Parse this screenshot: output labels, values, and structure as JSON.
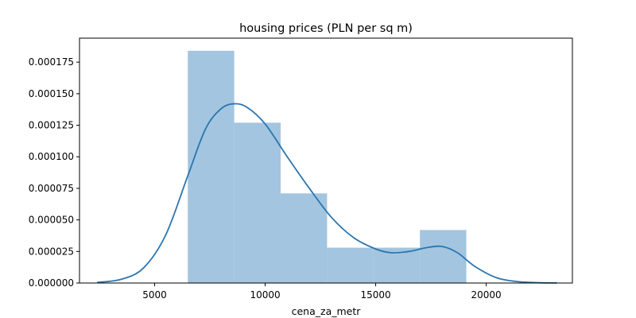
{
  "chart_data": {
    "type": "bar",
    "title": "housing prices (PLN per sq m)",
    "xlabel": "cena_za_metr",
    "ylabel": "",
    "xlim": [
      1600,
      23900
    ],
    "ylim": [
      0,
      0.000194
    ],
    "xticks": [
      5000,
      10000,
      15000,
      20000
    ],
    "xtick_labels": [
      "5000",
      "10000",
      "15000",
      "20000"
    ],
    "yticks": [
      0,
      2.5e-05,
      5e-05,
      7.5e-05,
      0.0001,
      0.000125,
      0.00015,
      0.000175
    ],
    "ytick_labels": [
      "0.000000",
      "0.000025",
      "0.000050",
      "0.000075",
      "0.000100",
      "0.000125",
      "0.000150",
      "0.000175"
    ],
    "grid": false,
    "legend": "none",
    "histogram": {
      "bins": [
        {
          "x0": 6500,
          "x1": 8600,
          "density": 0.000184
        },
        {
          "x0": 8600,
          "x1": 10700,
          "density": 0.000127
        },
        {
          "x0": 10700,
          "x1": 12800,
          "density": 7.1e-05
        },
        {
          "x0": 12800,
          "x1": 14900,
          "density": 2.8e-05
        },
        {
          "x0": 14900,
          "x1": 17000,
          "density": 2.8e-05
        },
        {
          "x0": 17000,
          "x1": 19100,
          "density": 4.2e-05
        }
      ],
      "color": "#a3c5df"
    },
    "kde": {
      "color": "#2a76b0",
      "x": [
        2400,
        3500,
        4500,
        5500,
        6500,
        7300,
        8000,
        8600,
        9200,
        10000,
        11000,
        12000,
        13000,
        14000,
        15000,
        15700,
        16500,
        17300,
        18000,
        18700,
        19500,
        20500,
        21500,
        22500,
        23200
      ],
      "y": [
        5e-07,
        3e-06,
        1.2e-05,
        3.8e-05,
        8.5e-05,
        0.000122,
        0.000138,
        0.000142,
        0.000139,
        0.000126,
        0.0001,
        7.5e-05,
        5.2e-05,
        3.6e-05,
        2.7e-05,
        2.4e-05,
        2.5e-05,
        2.8e-05,
        2.9e-05,
        2.4e-05,
        1.3e-05,
        4e-06,
        1e-06,
        2e-07,
        1e-07
      ]
    }
  }
}
